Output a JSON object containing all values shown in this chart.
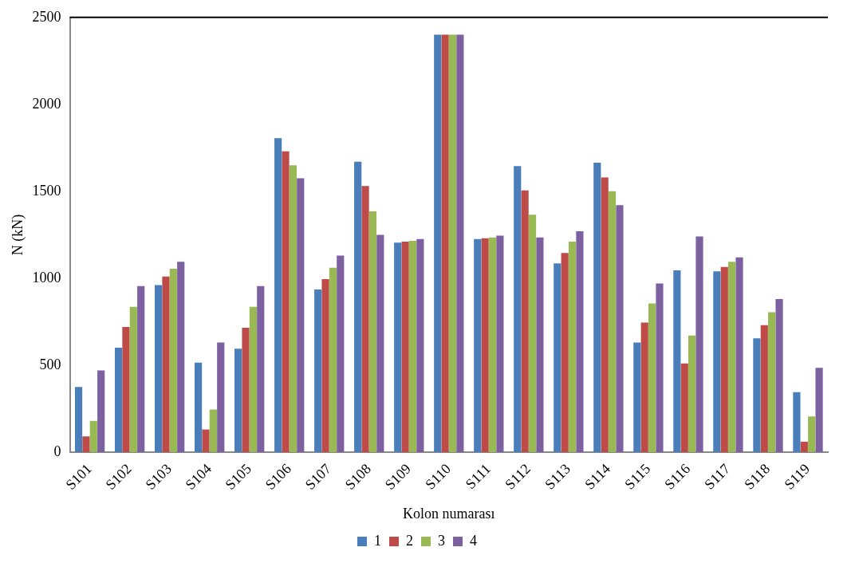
{
  "chart_data": {
    "type": "bar",
    "xlabel": "Kolon numarası",
    "ylabel": "N (kN)",
    "categories": [
      "S101",
      "S102",
      "S103",
      "S104",
      "S105",
      "S106",
      "S107",
      "S108",
      "S109",
      "S110",
      "S111",
      "S112",
      "S113",
      "S114",
      "S115",
      "S116",
      "S117",
      "S118",
      "S119"
    ],
    "series": [
      {
        "name": "1",
        "color": "#4a7ebb",
        "values": [
          375,
          600,
          960,
          515,
          595,
          1805,
          935,
          1670,
          1205,
          2400,
          1225,
          1645,
          1085,
          1665,
          630,
          1045,
          1040,
          655,
          345
        ]
      },
      {
        "name": "2",
        "color": "#be4b48",
        "values": [
          90,
          720,
          1010,
          130,
          715,
          1730,
          995,
          1530,
          1210,
          2400,
          1230,
          1505,
          1145,
          1580,
          745,
          510,
          1065,
          730,
          60
        ]
      },
      {
        "name": "3",
        "color": "#98b954",
        "values": [
          180,
          835,
          1055,
          245,
          835,
          1650,
          1060,
          1385,
          1215,
          2400,
          1235,
          1365,
          1210,
          1500,
          855,
          670,
          1095,
          805,
          205
        ]
      },
      {
        "name": "4",
        "color": "#7d60a0",
        "values": [
          470,
          955,
          1095,
          630,
          955,
          1575,
          1130,
          1250,
          1225,
          2400,
          1245,
          1235,
          1270,
          1420,
          970,
          1240,
          1120,
          880,
          485
        ]
      }
    ],
    "ylim": [
      0,
      2500
    ],
    "yticks": [
      0,
      500,
      1000,
      1500,
      2000,
      2500
    ],
    "grid": false,
    "legend": "bottom"
  }
}
